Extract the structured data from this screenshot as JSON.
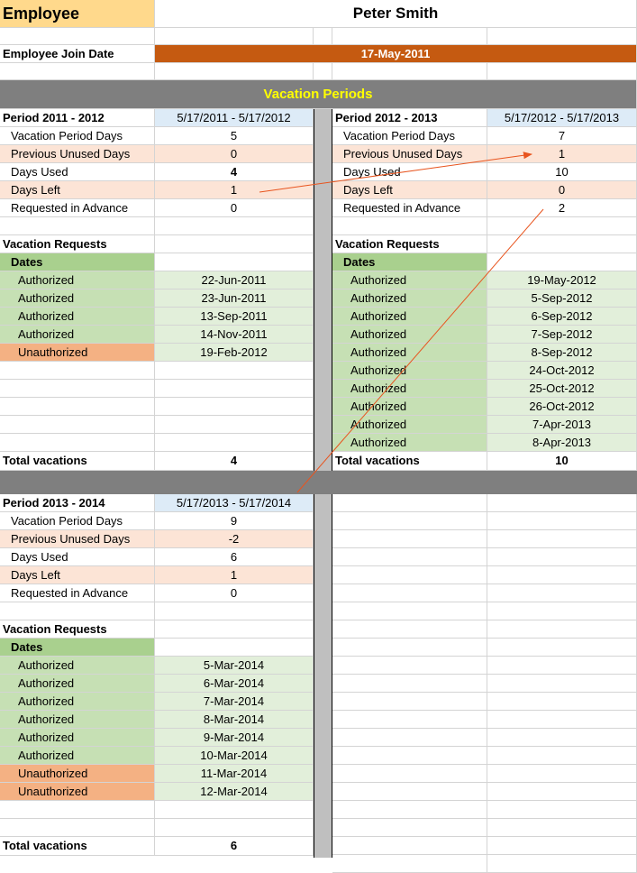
{
  "header": {
    "employee_label": "Employee",
    "employee_name": "Peter Smith",
    "join_label": "Employee Join Date",
    "join_date": "17-May-2011",
    "section_title": "Vacation Periods"
  },
  "row_labels": {
    "period_days": "Vacation Period Days",
    "prev_unused": "Previous Unused Days",
    "days_used": "Days Used",
    "days_left": "Days Left",
    "advance": "Requested in Advance",
    "requests": "Vacation Requests",
    "dates": "Dates",
    "total": "Total vacations"
  },
  "periods": [
    {
      "title": "Period 2011 - 2012",
      "range": "5/17/2011  -  5/17/2012",
      "period_days": "5",
      "prev_unused": "0",
      "days_used": "4",
      "days_left": "1",
      "advance": "0",
      "requests": [
        {
          "status": "Authorized",
          "date": "22-Jun-2011"
        },
        {
          "status": "Authorized",
          "date": "23-Jun-2011"
        },
        {
          "status": "Authorized",
          "date": "13-Sep-2011"
        },
        {
          "status": "Authorized",
          "date": "14-Nov-2011"
        },
        {
          "status": "Unauthorized",
          "date": "19-Feb-2012"
        }
      ],
      "total": "4"
    },
    {
      "title": "Period 2012 - 2013",
      "range": "5/17/2012  -  5/17/2013",
      "period_days": "7",
      "prev_unused": "1",
      "days_used": "10",
      "days_left": "0",
      "advance": "2",
      "requests": [
        {
          "status": "Authorized",
          "date": "19-May-2012"
        },
        {
          "status": "Authorized",
          "date": "5-Sep-2012"
        },
        {
          "status": "Authorized",
          "date": "6-Sep-2012"
        },
        {
          "status": "Authorized",
          "date": "7-Sep-2012"
        },
        {
          "status": "Authorized",
          "date": "8-Sep-2012"
        },
        {
          "status": "Authorized",
          "date": "24-Oct-2012"
        },
        {
          "status": "Authorized",
          "date": "25-Oct-2012"
        },
        {
          "status": "Authorized",
          "date": "26-Oct-2012"
        },
        {
          "status": "Authorized",
          "date": "7-Apr-2013"
        },
        {
          "status": "Authorized",
          "date": "8-Apr-2013"
        }
      ],
      "total": "10"
    },
    {
      "title": "Period 2013 - 2014",
      "range": "5/17/2013  -  5/17/2014",
      "period_days": "9",
      "prev_unused": "-2",
      "days_used": "6",
      "days_left": "1",
      "advance": "0",
      "requests": [
        {
          "status": "Authorized",
          "date": "5-Mar-2014"
        },
        {
          "status": "Authorized",
          "date": "6-Mar-2014"
        },
        {
          "status": "Authorized",
          "date": "7-Mar-2014"
        },
        {
          "status": "Authorized",
          "date": "8-Mar-2014"
        },
        {
          "status": "Authorized",
          "date": "9-Mar-2014"
        },
        {
          "status": "Authorized",
          "date": "10-Mar-2014"
        },
        {
          "status": "Unauthorized",
          "date": "11-Mar-2014"
        },
        {
          "status": "Unauthorized",
          "date": "12-Mar-2014"
        }
      ],
      "total": "6"
    }
  ],
  "colors": {
    "arrow": "#e8541e",
    "authorized": "#c6e0b4",
    "unauthorized": "#f4b183",
    "date_bg": "#e2efda"
  }
}
